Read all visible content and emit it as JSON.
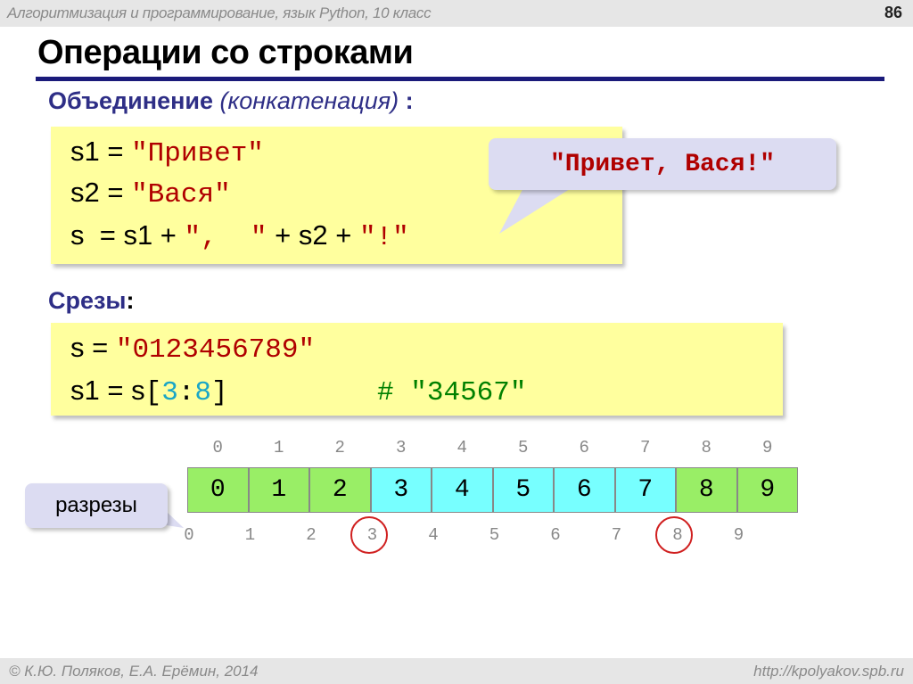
{
  "header": {
    "course": "Алгоритмизация и программирование, язык Python, 10 класс",
    "page_number": "86"
  },
  "title": "Операции со строками",
  "concat": {
    "heading": "Объединение",
    "heading_note": "(конкатенация)",
    "heading_colon": " :",
    "lines": [
      [
        [
          "s1 = ",
          "plain"
        ],
        [
          "\"Привет\"",
          "str"
        ]
      ],
      [
        [
          "s2 = ",
          "plain"
        ],
        [
          "\"Вася\"",
          "str"
        ]
      ],
      [
        [
          "s  = s1 + ",
          "plain"
        ],
        [
          "\",  \"",
          "str"
        ],
        [
          " + s2 + ",
          "plain"
        ],
        [
          "\"!\"",
          "str"
        ]
      ]
    ],
    "callout": "\"Привет, Вася!\""
  },
  "slices": {
    "heading": "Срезы",
    "heading_colon": ":",
    "lines": [
      [
        [
          "s = ",
          "plain"
        ],
        [
          "\"0123456789\"",
          "str"
        ]
      ],
      [
        [
          "s1 = s",
          "plain"
        ],
        [
          "[",
          "mono"
        ],
        [
          "3",
          "idx"
        ],
        [
          ":",
          "mono"
        ],
        [
          "8",
          "idx"
        ],
        [
          "]",
          "mono"
        ],
        [
          "         # \"34567\"",
          "cmt"
        ]
      ]
    ]
  },
  "diagram": {
    "cells": [
      "0",
      "1",
      "2",
      "3",
      "4",
      "5",
      "6",
      "7",
      "8",
      "9"
    ],
    "highlighted": [
      3,
      4,
      5,
      6,
      7
    ],
    "top_indices": [
      "0",
      "1",
      "2",
      "3",
      "4",
      "5",
      "6",
      "7",
      "8",
      "9"
    ],
    "cut_indices": [
      "0",
      "1",
      "2",
      "3",
      "4",
      "5",
      "6",
      "7",
      "8",
      "9"
    ],
    "circled_cuts": [
      3,
      8
    ],
    "cut_label": "разрезы",
    "colors": {
      "normal": "#99ee66",
      "highlight": "#77ffff",
      "circle": "#d02020"
    }
  },
  "footer": {
    "authors": "© К.Ю. Поляков, Е.А. Ерёмин, 2014",
    "url": "http://kpolyakov.spb.ru"
  }
}
